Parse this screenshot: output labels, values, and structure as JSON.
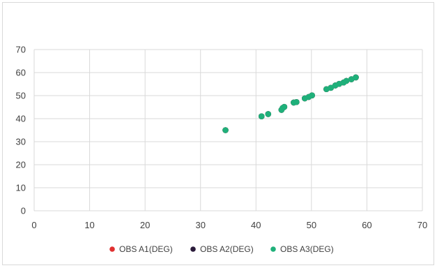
{
  "chart_data": {
    "type": "scatter",
    "title": "",
    "xlabel": "",
    "ylabel": "",
    "xlim": [
      0,
      70
    ],
    "ylim": [
      0,
      70
    ],
    "xticks": [
      0,
      10,
      20,
      30,
      40,
      50,
      60,
      70
    ],
    "yticks": [
      0,
      10,
      20,
      30,
      40,
      50,
      60,
      70
    ],
    "grid": true,
    "legend_position": "bottom",
    "series": [
      {
        "name": "OBS A1(DEG)",
        "color": "#e03030",
        "points": [
          [
            34.5,
            35.0
          ],
          [
            41.0,
            41.0
          ],
          [
            42.2,
            42.0
          ],
          [
            44.6,
            43.8
          ],
          [
            44.8,
            44.6
          ],
          [
            45.1,
            45.1
          ],
          [
            46.8,
            47.0
          ],
          [
            47.3,
            47.2
          ],
          [
            48.8,
            48.8
          ],
          [
            49.5,
            49.4
          ],
          [
            50.1,
            50.1
          ],
          [
            52.7,
            52.8
          ],
          [
            53.5,
            53.4
          ],
          [
            54.3,
            54.4
          ],
          [
            55.0,
            55.1
          ],
          [
            55.8,
            55.7
          ],
          [
            56.3,
            56.4
          ],
          [
            57.2,
            57.1
          ],
          [
            58.0,
            57.9
          ]
        ]
      },
      {
        "name": "OBS A2(DEG)",
        "color": "#2a1a3a",
        "points": [
          [
            34.5,
            35.0
          ],
          [
            41.0,
            41.0
          ],
          [
            42.2,
            42.0
          ],
          [
            44.6,
            43.8
          ],
          [
            44.8,
            44.6
          ],
          [
            45.1,
            45.1
          ],
          [
            46.8,
            47.0
          ],
          [
            47.3,
            47.2
          ],
          [
            48.8,
            48.8
          ],
          [
            49.5,
            49.4
          ],
          [
            50.1,
            50.1
          ],
          [
            52.7,
            52.8
          ],
          [
            53.5,
            53.4
          ],
          [
            54.3,
            54.4
          ],
          [
            55.0,
            55.1
          ],
          [
            55.8,
            55.7
          ],
          [
            56.3,
            56.4
          ],
          [
            57.2,
            57.1
          ],
          [
            58.0,
            57.9
          ]
        ]
      },
      {
        "name": "OBS A3(DEG)",
        "color": "#1fb07a",
        "points": [
          [
            34.5,
            35.0
          ],
          [
            41.0,
            41.0
          ],
          [
            42.2,
            42.0
          ],
          [
            44.6,
            43.8
          ],
          [
            44.8,
            44.6
          ],
          [
            45.1,
            45.1
          ],
          [
            46.8,
            47.0
          ],
          [
            47.3,
            47.2
          ],
          [
            48.8,
            48.8
          ],
          [
            49.5,
            49.4
          ],
          [
            50.1,
            50.1
          ],
          [
            52.7,
            52.8
          ],
          [
            53.5,
            53.4
          ],
          [
            54.3,
            54.4
          ],
          [
            55.0,
            55.1
          ],
          [
            55.8,
            55.7
          ],
          [
            56.3,
            56.4
          ],
          [
            57.2,
            57.1
          ],
          [
            58.0,
            57.9
          ]
        ]
      }
    ]
  }
}
